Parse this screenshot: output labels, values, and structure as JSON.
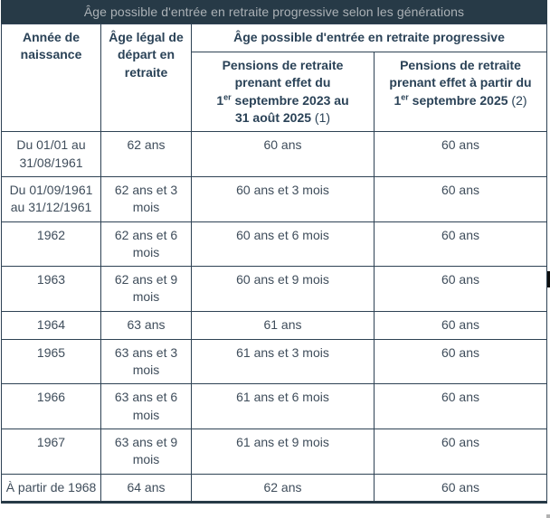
{
  "title": "Âge possible d'entrée en retraite progressive selon les générations",
  "table": {
    "col1_header": "Année de naissance",
    "col2_header": "Âge légal de départ en retraite",
    "group_header": "Âge possible d'entrée en retraite progressive",
    "sub1": {
      "line1": "Pensions de retraite",
      "line2": "prenant effet du",
      "line3_num": "1",
      "line3_sup": "er",
      "line3_rest": " septembre 2023 au",
      "line4_main": "31 août 2025",
      "line4_note": " (1)"
    },
    "sub2": {
      "line1": "Pensions de retraite",
      "line2": "prenant effet à partir du",
      "line3_num": "1",
      "line3_sup": "er",
      "line3_rest": " septembre 2025",
      "line3_note": " (2)"
    },
    "rows": [
      {
        "naissance": "Du 01/01 au 31/08/1961",
        "age_legal": "62 ans",
        "p2023": "60 ans",
        "p2025": "60 ans"
      },
      {
        "naissance": "Du 01/09/1961 au 31/12/1961",
        "age_legal": "62 ans et 3 mois",
        "p2023": "60 ans et 3 mois",
        "p2025": "60 ans"
      },
      {
        "naissance": "1962",
        "age_legal": "62 ans et 6 mois",
        "p2023": "60 ans et 6 mois",
        "p2025": "60 ans"
      },
      {
        "naissance": "1963",
        "age_legal": "62 ans et 9 mois",
        "p2023": "60 ans et 9 mois",
        "p2025": "60 ans"
      },
      {
        "naissance": "1964",
        "age_legal": "63 ans",
        "p2023": "61 ans",
        "p2025": "60 ans"
      },
      {
        "naissance": "1965",
        "age_legal": "63 ans et 3 mois",
        "p2023": "61 ans et 3 mois",
        "p2025": "60 ans"
      },
      {
        "naissance": "1966",
        "age_legal": "63 ans et 6 mois",
        "p2023": "61 ans et 6 mois",
        "p2025": "60 ans"
      },
      {
        "naissance": "1967",
        "age_legal": "63 ans et 9 mois",
        "p2023": "61 ans et 9 mois",
        "p2025": "60 ans"
      },
      {
        "naissance": "À partir de 1968",
        "age_legal": "64 ans",
        "p2023": "62 ans",
        "p2025": "60 ans"
      }
    ]
  },
  "colors": {
    "caption_bg": "#273a47",
    "caption_text": "#abb1b6",
    "header_text": "#2a4257",
    "body_text": "#3f4d5b",
    "border": "#2e4254"
  }
}
